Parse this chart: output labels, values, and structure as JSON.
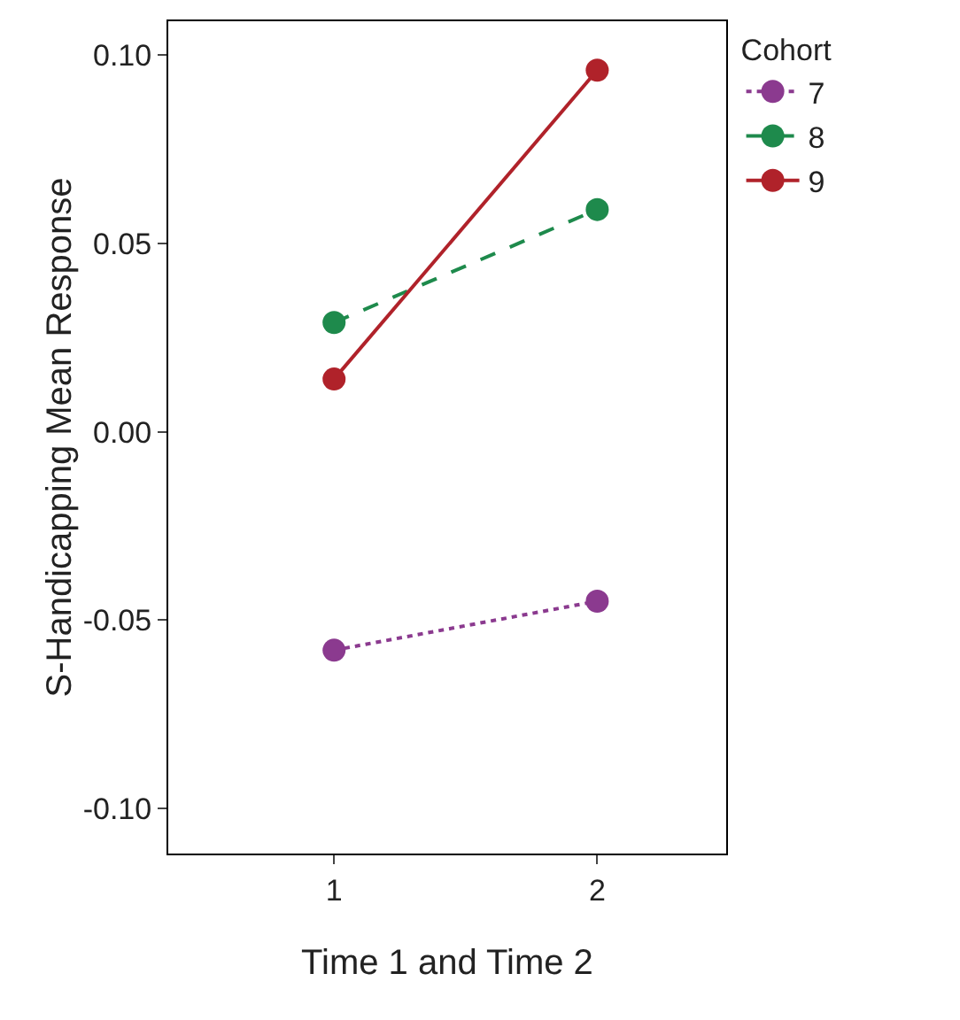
{
  "chart_data": {
    "type": "line",
    "xlabel": "Time 1 and Time 2",
    "ylabel": "S-Handicapping Mean Response",
    "legend_title": "Cohort",
    "x": [
      1,
      2
    ],
    "xlim": [
      0.37,
      2.49
    ],
    "xticks": [
      1,
      2
    ],
    "ylim": [
      -0.112,
      0.109
    ],
    "yticks": [
      {
        "value": -0.1,
        "label": "-0.10"
      },
      {
        "value": -0.05,
        "label": "-0.05"
      },
      {
        "value": 0,
        "label": "0.00"
      },
      {
        "value": 0.05,
        "label": "0.05"
      },
      {
        "value": 0.1,
        "label": "0.10"
      }
    ],
    "series": [
      {
        "name": "7",
        "color": "#8b3a8f",
        "values": [
          -0.058,
          -0.045
        ],
        "line_style": "dotted"
      },
      {
        "name": "8",
        "color": "#1e8a4c",
        "values": [
          0.029,
          0.059
        ],
        "line_style": "dashed"
      },
      {
        "name": "9",
        "color": "#b0222a",
        "values": [
          0.014,
          0.096
        ],
        "line_style": "solid"
      }
    ],
    "marker": "circle",
    "grid": false,
    "legend": "top right"
  }
}
